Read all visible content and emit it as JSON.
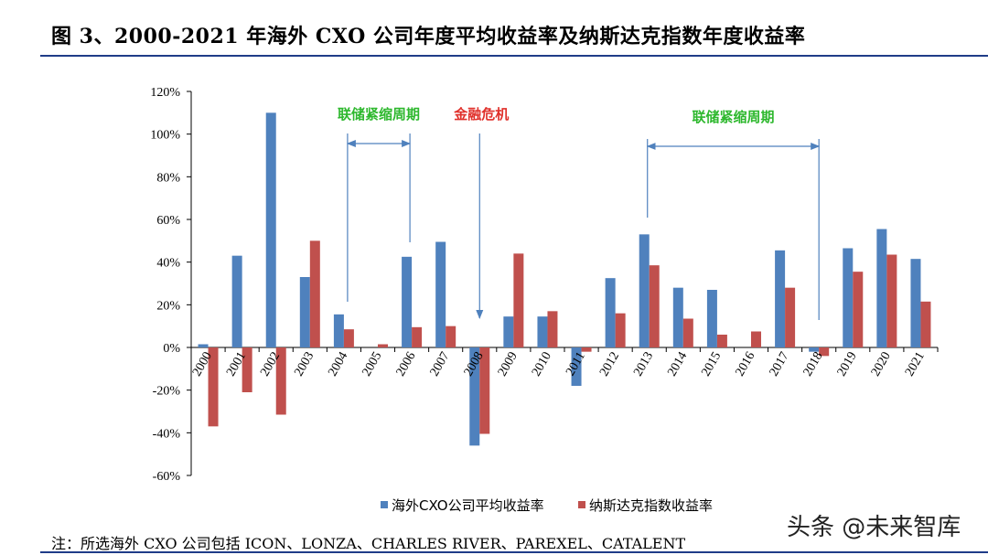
{
  "figure": {
    "title": "图 3、2000-2021 年海外 CXO 公司年度平均收益率及纳斯达克指数年度收益率",
    "note": "注：所选海外 CXO 公司包括 ICON、LONZA、CHARLES RIVER、PAREXEL、CATALENT",
    "watermark": "头条 @未来智库"
  },
  "colors": {
    "series1": "#4f81bd",
    "series2": "#c0504d",
    "arrow": "#4f81bd",
    "rule": "#1f3c88"
  },
  "chart_data": {
    "type": "bar",
    "title": "",
    "categories": [
      "2000",
      "2001",
      "2002",
      "2003",
      "2004",
      "2005",
      "2006",
      "2007",
      "2008",
      "2009",
      "2010",
      "2011",
      "2012",
      "2013",
      "2014",
      "2015",
      "2016",
      "2017",
      "2018",
      "2019",
      "2020",
      "2021"
    ],
    "series": [
      {
        "name": "海外CXO公司平均收益率",
        "values": [
          1.5,
          43,
          110,
          33,
          15.5,
          0,
          42.5,
          49.5,
          -46,
          14.5,
          14.5,
          -18,
          32.5,
          53,
          28,
          27,
          0,
          45.5,
          -2,
          46.5,
          55.5,
          41.5
        ]
      },
      {
        "name": "纳斯达克指数收益率",
        "values": [
          -37,
          -21,
          -31.5,
          50,
          8.5,
          1.5,
          9.5,
          10,
          -40.5,
          44,
          17,
          -2,
          16,
          38.5,
          13.5,
          6,
          7.5,
          28,
          -4,
          35.5,
          43.5,
          21.5
        ]
      }
    ],
    "xlabel": "",
    "ylabel": "",
    "ylim": [
      -60,
      120
    ],
    "yticks": [
      -60,
      -40,
      -20,
      0,
      20,
      40,
      60,
      80,
      100,
      120
    ],
    "ytick_labels": [
      "-60%",
      "-40%",
      "-20%",
      "0%",
      "20%",
      "40%",
      "60%",
      "80%",
      "100%",
      "120%"
    ],
    "grid": false,
    "legend_position": "bottom",
    "annotations": [
      {
        "text": "联储紧缩周期",
        "color": "green",
        "from": "2004",
        "to": "2006"
      },
      {
        "text": "金融危机",
        "color": "red",
        "at": "2008"
      },
      {
        "text": "联储紧缩周期",
        "color": "green",
        "from": "2013",
        "to": "2018"
      }
    ]
  }
}
